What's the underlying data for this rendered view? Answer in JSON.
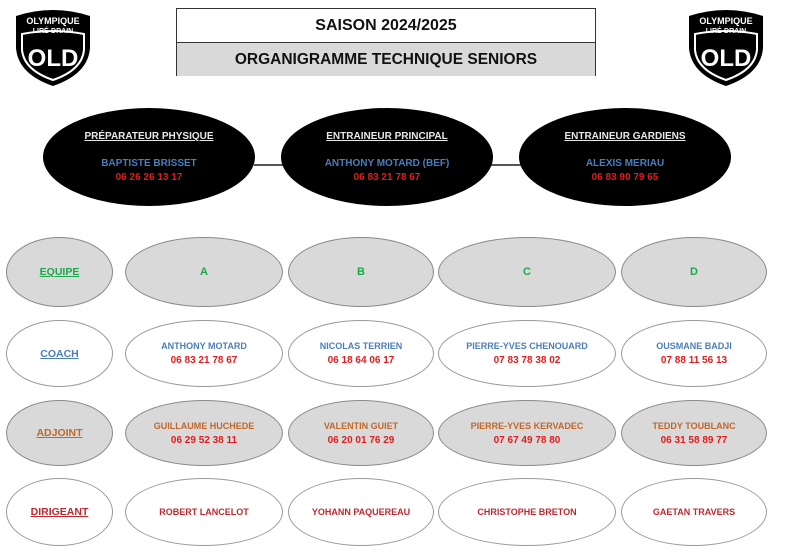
{
  "header": {
    "season": "SAISON 2024/2025",
    "title": "ORGANIGRAMME TECHNIQUE SENIORS",
    "logo_text": [
      "OLYMPIQUE",
      "LIRÉ-DRAIN",
      "OLD"
    ]
  },
  "staff": [
    {
      "role": "PRÉPARATEUR PHYSIQUE",
      "name": "BAPTISTE BRISSET",
      "phone": "06 26 26 13 17"
    },
    {
      "role": "ENTRAINEUR PRINCIPAL",
      "name": "ANTHONY MOTARD (BEF)",
      "phone": "06 83 21 78 67"
    },
    {
      "role": "ENTRAINEUR GARDIENS",
      "name": "ALEXIS MERIAU",
      "phone": "06 83 90 79 65"
    }
  ],
  "colors": {
    "name_blue": "#4a7ebb",
    "phone_red": "#e31b1b",
    "team_green": "#1aa84a",
    "adjoint_orange": "#c0672a",
    "dirigeant_red": "#c0282e"
  },
  "rows": [
    {
      "label": "EQUIPE",
      "style": "gray",
      "cells": [
        {
          "name": "A"
        },
        {
          "name": "B"
        },
        {
          "name": "C"
        },
        {
          "name": "D"
        }
      ]
    },
    {
      "label": "COACH",
      "style": "white",
      "cells": [
        {
          "name": "ANTHONY MOTARD",
          "phone": "06 83 21 78 67"
        },
        {
          "name": "NICOLAS TERRIEN",
          "phone": "06 18 64 06 17"
        },
        {
          "name": "PIERRE-YVES CHENOUARD",
          "phone": "07 83 78 38 02"
        },
        {
          "name": "OUSMANE BADJI",
          "phone": "07 88 11 56 13"
        }
      ]
    },
    {
      "label": "ADJOINT",
      "style": "gray",
      "cells": [
        {
          "name": "GUILLAUME HUCHEDE",
          "phone": "06 29 52 38 11"
        },
        {
          "name": "VALENTIN GUIET",
          "phone": "06 20 01 76 29"
        },
        {
          "name": "PIERRE-YVES KERVADEC",
          "phone": "07 67 49 78 80"
        },
        {
          "name": "TEDDY TOUBLANC",
          "phone": "06 31 58 89 77"
        }
      ]
    },
    {
      "label": "DIRIGEANT",
      "style": "white",
      "cells": [
        {
          "name": "ROBERT LANCELOT"
        },
        {
          "name": "YOHANN PAQUEREAU"
        },
        {
          "name": "CHRISTOPHE BRETON"
        },
        {
          "name": "GAETAN TRAVERS"
        }
      ]
    }
  ]
}
